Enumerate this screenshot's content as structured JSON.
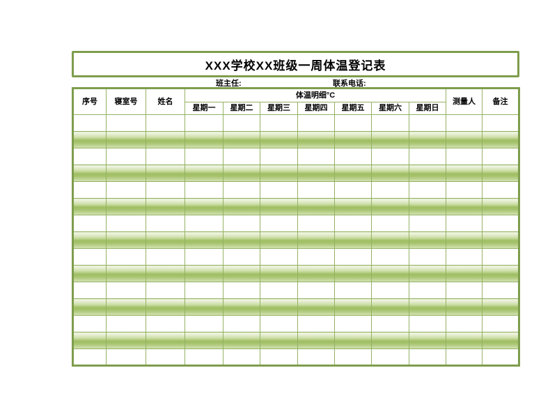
{
  "title_box": {
    "title": "XXX学校XX班级一周体温登记表"
  },
  "info": {
    "teacher_label": "班主任:",
    "phone_label": "联系电话:"
  },
  "table": {
    "header": {
      "serial": "序号",
      "dorm": "寝室号",
      "name": "姓名",
      "temp_group": "体温明细°C",
      "days": [
        "星期一",
        "星期二",
        "星期三",
        "星期四",
        "星期五",
        "星期六",
        "星期日"
      ],
      "measurer": "测量人",
      "remarks": "备注"
    },
    "body": {
      "row_count": 15,
      "columns": 12,
      "cell_value": ""
    },
    "colors": {
      "outer_border": "#7e9d4d",
      "inner_border": "#94b163",
      "stripe_light": "#f4f8ec",
      "stripe_dark": "#9fbe62"
    }
  }
}
